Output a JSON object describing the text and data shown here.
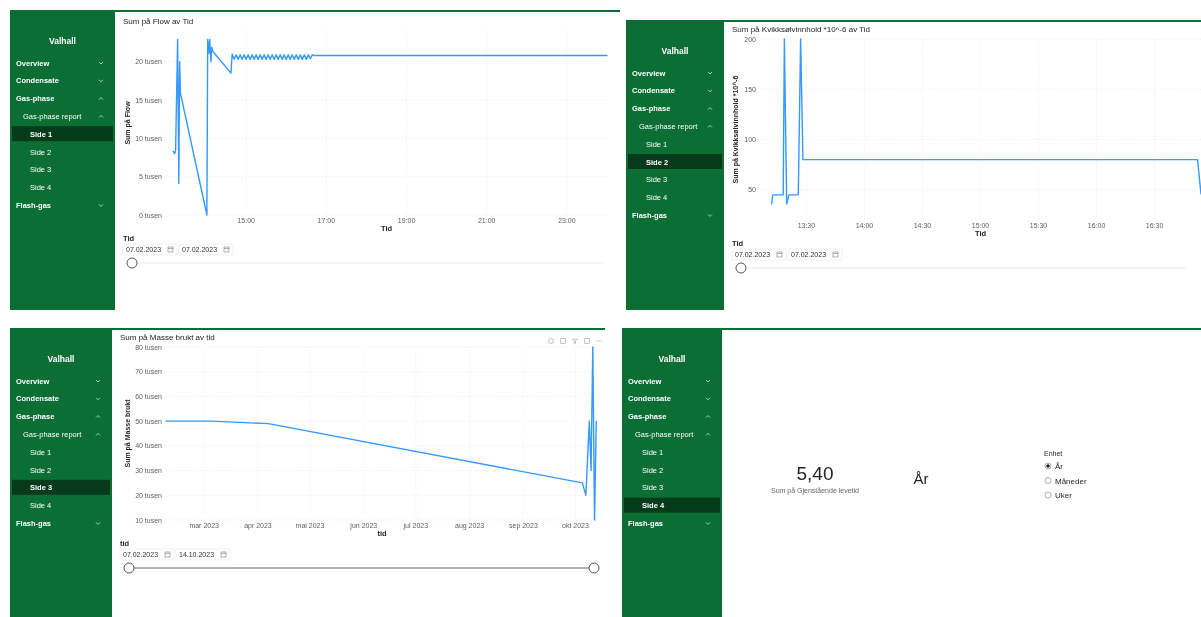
{
  "chart_data": [
    {
      "type": "line",
      "title": "Sum på Flow av Tid",
      "xlabel": "Tid",
      "ylabel": "Sum på Flow",
      "color": "#3399ff",
      "grid": true,
      "x": [
        13.18,
        13.22,
        13.24,
        13.29,
        13.32,
        13.34,
        13.36,
        14.02,
        14.04,
        14.07,
        14.09,
        14.12,
        14.14,
        14.16,
        14.62,
        14.65,
        14.7,
        14.75,
        14.8,
        14.85,
        14.9,
        14.95,
        15.0,
        15.05,
        15.1,
        15.15,
        15.2,
        15.25,
        15.3,
        15.35,
        15.4,
        15.45,
        15.5,
        15.55,
        15.6,
        15.65,
        15.7,
        15.75,
        15.8,
        15.85,
        15.9,
        15.95,
        16.0,
        16.05,
        16.1,
        16.15,
        16.2,
        16.25,
        16.3,
        16.35,
        16.4,
        16.45,
        16.5,
        16.55,
        16.6,
        16.65,
        16.7,
        24.0
      ],
      "values": [
        8.3,
        8.0,
        8.5,
        22.9,
        4.1,
        20.0,
        15.9,
        0,
        22.9,
        21.1,
        22.9,
        20.0,
        21.9,
        21.4,
        18.5,
        21.0,
        20.3,
        20.9,
        20.3,
        20.9,
        20.3,
        20.9,
        20.3,
        20.9,
        20.3,
        20.9,
        20.3,
        20.9,
        20.3,
        20.9,
        20.3,
        20.9,
        20.3,
        20.9,
        20.3,
        20.9,
        20.3,
        20.9,
        20.3,
        20.9,
        20.3,
        20.9,
        20.3,
        20.9,
        20.3,
        20.9,
        20.3,
        20.9,
        20.3,
        20.9,
        20.3,
        20.9,
        20.3,
        20.9,
        20.4,
        20.9,
        20.8,
        20.8
      ],
      "xlim": [
        13,
        24
      ],
      "ylim": [
        0,
        24
      ],
      "xticks": [
        {
          "value": 15,
          "label": "15:00"
        },
        {
          "value": 17,
          "label": "17:00"
        },
        {
          "value": 19,
          "label": "19:00"
        },
        {
          "value": 21,
          "label": "21:00"
        },
        {
          "value": 23,
          "label": "23:00"
        }
      ],
      "yticks": [
        {
          "value": 0,
          "label": "0 tusen"
        },
        {
          "value": 5,
          "label": "5 tusen"
        },
        {
          "value": 10,
          "label": "10 tusen"
        },
        {
          "value": 15,
          "label": "15 tusen"
        },
        {
          "value": 20,
          "label": "20 tusen"
        }
      ],
      "annotations": [
        "Valhall",
        "Overview",
        "Condensate",
        "Gas-phase",
        "Gas-phase report",
        "Side 1",
        "Side 2",
        "Side 3",
        "Side 4",
        "Flash-gas",
        "Tid",
        "07.02.2023",
        "07.02.2023"
      ]
    },
    {
      "type": "line",
      "title": "Sum på Kvikksølvinnhold *10^-6 av Tid",
      "xlabel": "Tid",
      "ylabel": "Sum på Kvikksølvinnhold *10^-6",
      "color": "#3399ff",
      "grid": true,
      "x": [
        13.2,
        13.21,
        13.3,
        13.31,
        13.33,
        13.35,
        13.43,
        13.45,
        13.47,
        16.87,
        16.9
      ],
      "values": [
        36,
        45,
        45,
        200,
        36,
        45,
        45,
        200,
        80,
        80,
        46
      ],
      "xlim": [
        13.1,
        16.9
      ],
      "ylim": [
        20,
        200
      ],
      "xticks": [
        {
          "value": 13.5,
          "label": "13:30"
        },
        {
          "value": 14,
          "label": "14:00"
        },
        {
          "value": 14.5,
          "label": "14:30"
        },
        {
          "value": 15,
          "label": "15:00"
        },
        {
          "value": 15.5,
          "label": "15:30"
        },
        {
          "value": 16,
          "label": "16:00"
        },
        {
          "value": 16.5,
          "label": "16:30"
        }
      ],
      "yticks": [
        50,
        100,
        150,
        200
      ],
      "annotations": [
        "Valhall",
        "Overview",
        "Condensate",
        "Gas-phase",
        "Gas-phase report",
        "Side 1",
        "Side 2",
        "Side 3",
        "Side 4",
        "Flash-gas",
        "Tid",
        "07.02.2023",
        "07.02.2023"
      ]
    },
    {
      "type": "line",
      "title": "Sum på Masse brukt av tid",
      "xlabel": "tid",
      "ylabel": "Sum på Masse brukt",
      "color": "#3399ff",
      "grid": true,
      "x": [
        "2023-02-07",
        "2023-03-05",
        "2023-04-07",
        "2023-10-05",
        "2023-10-07",
        "2023-10-09",
        "2023-10-10",
        "2023-10-11",
        "2023-10-12",
        "2023-10-13"
      ],
      "values": [
        50,
        50,
        49,
        25,
        20,
        50,
        30,
        80,
        10,
        50
      ],
      "xlim": [
        "2023-02-07",
        "2023-10-14"
      ],
      "ylim": [
        10,
        80
      ],
      "xticks": [
        {
          "value": "2023-03-01",
          "label": "mar 2023"
        },
        {
          "value": "2023-04-01",
          "label": "apr 2023"
        },
        {
          "value": "2023-05-01",
          "label": "mai 2023"
        },
        {
          "value": "2023-06-01",
          "label": "jun 2023"
        },
        {
          "value": "2023-07-01",
          "label": "jul 2023"
        },
        {
          "value": "2023-08-01",
          "label": "aug 2023"
        },
        {
          "value": "2023-09-01",
          "label": "sep 2023"
        },
        {
          "value": "2023-10-01",
          "label": "okt 2023"
        }
      ],
      "yticks": [
        {
          "value": 10,
          "label": "10 tusen"
        },
        {
          "value": 20,
          "label": "20 tusen"
        },
        {
          "value": 30,
          "label": "30 tusen"
        },
        {
          "value": 40,
          "label": "40 tusen"
        },
        {
          "value": 50,
          "label": "50 tusen"
        },
        {
          "value": 60,
          "label": "60 tusen"
        },
        {
          "value": 70,
          "label": "70 tusen"
        },
        {
          "value": 80,
          "label": "80 tusen"
        }
      ],
      "annotations": [
        "Valhall",
        "Overview",
        "Condensate",
        "Gas-phase",
        "Gas-phase report",
        "Side 1",
        "Side 2",
        "Side 3",
        "Side 4",
        "Flash-gas",
        "tid",
        "07.02.2023",
        "14.10.2023"
      ]
    },
    {
      "type": "other",
      "annotations": [
        "Valhall",
        "Overview",
        "Condensate",
        "Gas-phase",
        "Gas-phase report",
        "Side 1",
        "Side 2",
        "Side 3",
        "Side 4",
        "Flash-gas",
        "5,40",
        "Sum på Gjenstående levetid",
        "År",
        "Enhet",
        "År",
        "Måneder",
        "Uker"
      ]
    }
  ]
}
